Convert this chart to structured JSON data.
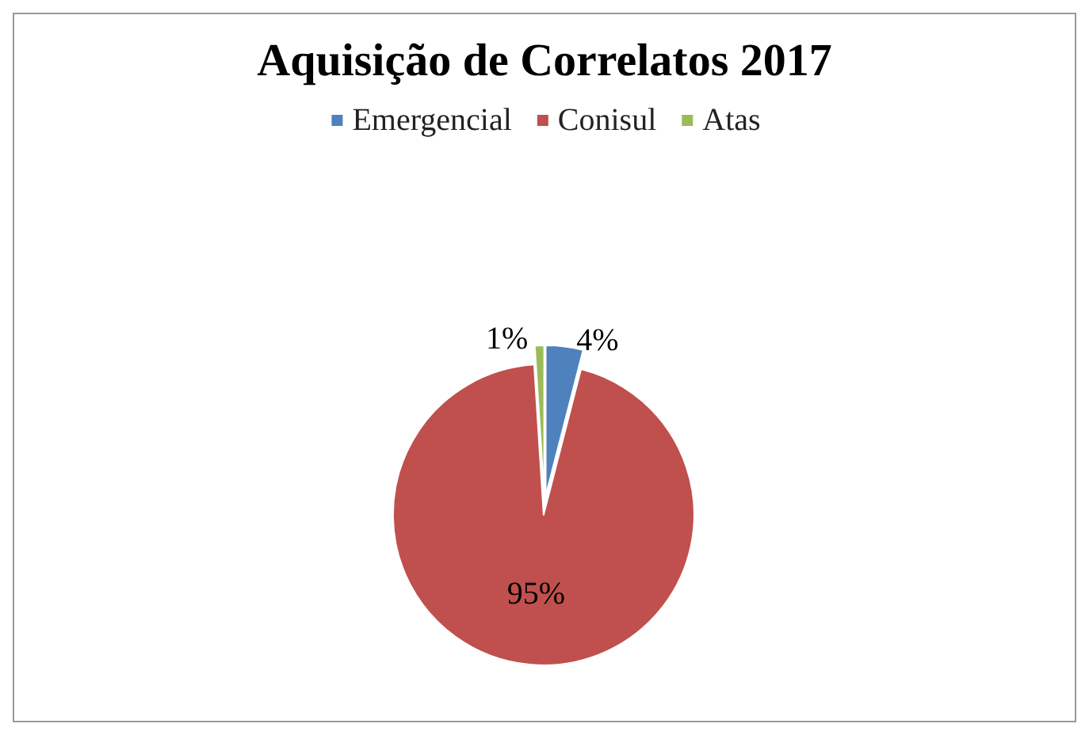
{
  "chart_data": {
    "type": "pie",
    "title": "Aquisição de Correlatos 2017",
    "categories": [
      "Emergencial",
      "Conisul",
      "Atas"
    ],
    "values": [
      4,
      95,
      1
    ],
    "colors": [
      "#4f81bd",
      "#c0504d",
      "#9bbb59"
    ],
    "value_labels": [
      "4%",
      "95%",
      "1%"
    ],
    "legend": "top"
  }
}
